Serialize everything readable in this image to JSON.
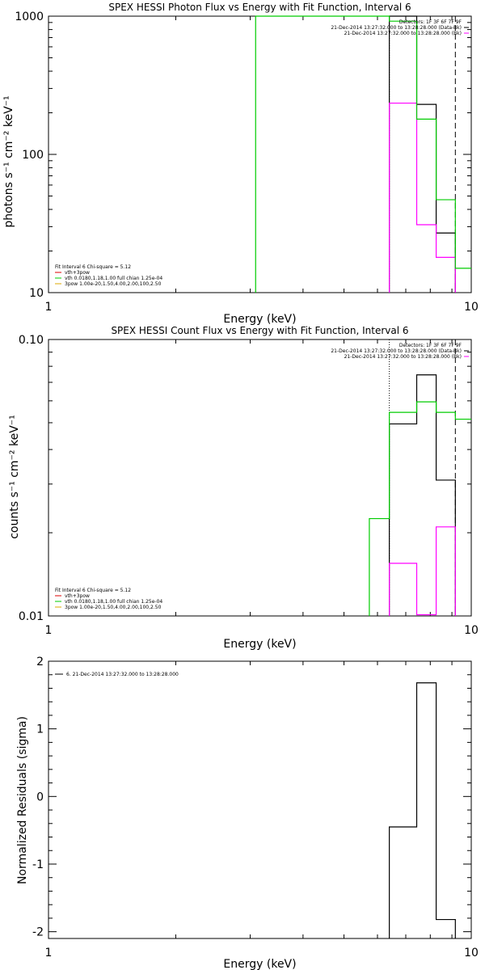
{
  "chart_data": [
    {
      "type": "line",
      "title": "SPEX HESSI Photon Flux vs Energy with Fit Function, Interval 6",
      "xlabel": "Energy (keV)",
      "ylabel": "photons s⁻¹ cm⁻² keV⁻¹",
      "xscale": "log",
      "yscale": "log",
      "xlim": [
        1,
        10
      ],
      "ylim": [
        10,
        1000
      ],
      "xticks": [
        1,
        10
      ],
      "xtick_labels": [
        "1",
        "10"
      ],
      "yticks": [
        10,
        100,
        1000
      ],
      "ytick_labels": [
        "10",
        "100",
        "1000"
      ],
      "vlines": [
        {
          "x": 6.4,
          "style": "dotted"
        },
        {
          "x": 9.17,
          "style": "dashed"
        }
      ],
      "info_lines": [
        {
          "text": "Detectors: 1F 3F 6F 7F 9F",
          "color": ""
        },
        {
          "text": "21-Dec-2014 13:27:32.000 to 13:28:28.000 (Data-Bk)",
          "color": "#000000"
        },
        {
          "text": "21-Dec-2014 13:27:32.000 to 13:28:28.000 (Bk)",
          "color": "#ff00ff"
        }
      ],
      "legend_lines": [
        {
          "text": "Fit Interval 6   Chi-square = 5.12",
          "color": ""
        },
        {
          "text": "vth+3pow",
          "color": "#dd0000"
        },
        {
          "text": "vth 0.0180,1.18,1.00  full chian 1.25e-04",
          "color": "#00cc00"
        },
        {
          "text": "3pow 1.00e-20,1.50,4.00,2.00,100,2.50",
          "color": "#ddaa00"
        }
      ],
      "series": [
        {
          "color": "#000000",
          "edges": [
            6.4,
            7.43,
            8.26,
            9.17
          ],
          "values": [
            1000,
            230,
            27
          ]
        },
        {
          "color": "#ff00ff",
          "edges": [
            6.4,
            7.43,
            8.26,
            9.17
          ],
          "values": [
            235,
            31,
            18
          ]
        },
        {
          "color": "#00cc00",
          "edges": [
            3.09,
            5.74,
            6.4,
            7.43,
            8.26,
            9.17,
            10
          ],
          "values": [
            1000,
            1000,
            920,
            180,
            47,
            15
          ]
        }
      ]
    },
    {
      "type": "line",
      "title": "SPEX HESSI Count Flux vs Energy with Fit Function, Interval 6",
      "xlabel": "Energy (keV)",
      "ylabel": "counts s⁻¹ cm⁻² keV⁻¹",
      "xscale": "log",
      "yscale": "log",
      "xlim": [
        1,
        10
      ],
      "ylim": [
        0.01,
        0.1
      ],
      "xticks": [
        1,
        10
      ],
      "xtick_labels": [
        "1",
        "10"
      ],
      "yticks": [
        0.01,
        0.1
      ],
      "ytick_labels": [
        "0.01",
        "0.10"
      ],
      "vlines": [
        {
          "x": 6.4,
          "style": "dotted"
        },
        {
          "x": 9.17,
          "style": "dashed"
        }
      ],
      "info_lines": [
        {
          "text": "Detectors: 1F 3F 6F 7F 9F",
          "color": ""
        },
        {
          "text": "21-Dec-2014 13:27:32.000 to 13:28:28.000 (Data-Bk)",
          "color": "#000000"
        },
        {
          "text": "21-Dec-2014 13:27:32.000 to 13:28:28.000 (Bk)",
          "color": "#ff00ff"
        }
      ],
      "legend_lines": [
        {
          "text": "Fit Interval 6   Chi-square = 5.12",
          "color": ""
        },
        {
          "text": "vth+3pow",
          "color": "#dd0000"
        },
        {
          "text": "vth 0.0180,1.18,1.00  full chian 1.25e-04",
          "color": "#00cc00"
        },
        {
          "text": "3pow 1.00e-20,1.50,4.00,2.00,100,2.50",
          "color": "#ddaa00"
        }
      ],
      "series": [
        {
          "color": "#000000",
          "edges": [
            6.4,
            7.43,
            8.26,
            9.17
          ],
          "values": [
            0.0495,
            0.0745,
            0.031
          ]
        },
        {
          "color": "#ff00ff",
          "edges": [
            6.4,
            7.43,
            8.26,
            9.17
          ],
          "values": [
            0.0155,
            0.0101,
            0.021
          ]
        },
        {
          "color": "#00cc00",
          "edges": [
            5.74,
            6.4,
            7.43,
            8.26,
            9.17,
            10
          ],
          "values": [
            0.0225,
            0.0545,
            0.0595,
            0.0545,
            0.0515
          ]
        }
      ]
    },
    {
      "type": "line",
      "title": "",
      "xlabel": "Energy (keV)",
      "ylabel": "Normalized Residuals (sigma)",
      "xscale": "log",
      "yscale": "linear",
      "xlim": [
        1,
        10
      ],
      "ylim": [
        -2.1,
        2.0
      ],
      "xticks": [
        1,
        10
      ],
      "xtick_labels": [
        "1",
        "10"
      ],
      "yticks": [
        -2,
        -1,
        0,
        1,
        2
      ],
      "ytick_labels": [
        "-2",
        "-1",
        "0",
        "1",
        "2"
      ],
      "vlines": [],
      "info_lines": [],
      "legend_lines": [
        {
          "text": "6. 21-Dec-2014 13:27:32.000 to 13:28:28.000",
          "color": "#000000"
        }
      ],
      "series": [
        {
          "color": "#000000",
          "edges": [
            6.4,
            7.43,
            8.26,
            9.17
          ],
          "values": [
            -0.45,
            1.68,
            -1.82
          ]
        }
      ]
    }
  ]
}
